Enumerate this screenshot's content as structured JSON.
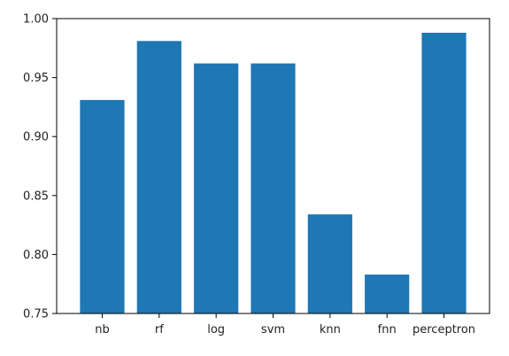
{
  "chart_data": {
    "type": "bar",
    "categories": [
      "nb",
      "rf",
      "log",
      "svm",
      "knn",
      "fnn",
      "perceptron"
    ],
    "values": [
      0.931,
      0.981,
      0.962,
      0.962,
      0.834,
      0.783,
      0.988
    ],
    "ylim": [
      0.75,
      1.0
    ],
    "yticks": [
      "0.75",
      "0.80",
      "0.85",
      "0.90",
      "0.95",
      "1.00"
    ],
    "grid": false,
    "bar_color": "#1f77b4"
  }
}
